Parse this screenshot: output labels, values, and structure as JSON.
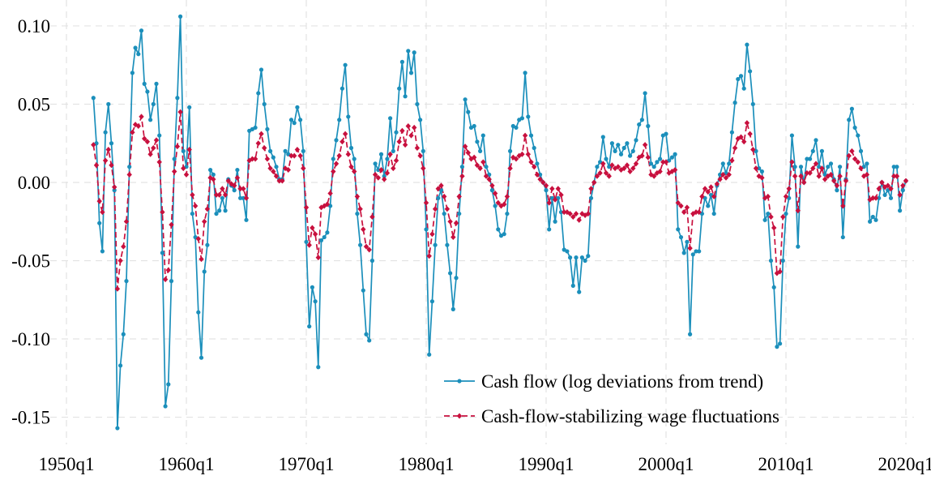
{
  "chart_data": {
    "type": "line",
    "x": [
      "1952q2",
      "1952q3",
      "1952q4",
      "1953q1",
      "1953q2",
      "1953q3",
      "1953q4",
      "1954q1",
      "1954q2",
      "1954q3",
      "1954q4",
      "1955q1",
      "1955q2",
      "1955q3",
      "1955q4",
      "1956q1",
      "1956q2",
      "1956q3",
      "1956q4",
      "1957q1",
      "1957q2",
      "1957q3",
      "1957q4",
      "1958q1",
      "1958q2",
      "1958q3",
      "1958q4",
      "1959q1",
      "1959q2",
      "1959q3",
      "1959q4",
      "1960q1",
      "1960q2",
      "1960q3",
      "1960q4",
      "1961q1",
      "1961q2",
      "1961q3",
      "1961q4",
      "1962q1",
      "1962q2",
      "1962q3",
      "1962q4",
      "1963q1",
      "1963q2",
      "1963q3",
      "1963q4",
      "1964q1",
      "1964q2",
      "1964q3",
      "1964q4",
      "1965q1",
      "1965q2",
      "1965q3",
      "1965q4",
      "1966q1",
      "1966q2",
      "1966q3",
      "1966q4",
      "1967q1",
      "1967q2",
      "1967q3",
      "1967q4",
      "1968q1",
      "1968q2",
      "1968q3",
      "1968q4",
      "1969q1",
      "1969q2",
      "1969q3",
      "1969q4",
      "1970q1",
      "1970q2",
      "1970q3",
      "1970q4",
      "1971q1",
      "1971q2",
      "1971q3",
      "1971q4",
      "1972q1",
      "1972q2",
      "1972q3",
      "1972q4",
      "1973q1",
      "1973q2",
      "1973q3",
      "1973q4",
      "1974q1",
      "1974q2",
      "1974q3",
      "1974q4",
      "1975q1",
      "1975q2",
      "1975q3",
      "1975q4",
      "1976q1",
      "1976q2",
      "1976q3",
      "1976q4",
      "1977q1",
      "1977q2",
      "1977q3",
      "1977q4",
      "1978q1",
      "1978q2",
      "1978q3",
      "1978q4",
      "1979q1",
      "1979q2",
      "1979q3",
      "1979q4",
      "1980q1",
      "1980q2",
      "1980q3",
      "1980q4",
      "1981q1",
      "1981q2",
      "1981q3",
      "1981q4",
      "1982q1",
      "1982q2",
      "1982q3",
      "1982q4",
      "1983q1",
      "1983q2",
      "1983q3",
      "1983q4",
      "1984q1",
      "1984q2",
      "1984q3",
      "1984q4",
      "1985q1",
      "1985q2",
      "1985q3",
      "1985q4",
      "1986q1",
      "1986q2",
      "1986q3",
      "1986q4",
      "1987q1",
      "1987q2",
      "1987q3",
      "1987q4",
      "1988q1",
      "1988q2",
      "1988q3",
      "1988q4",
      "1989q1",
      "1989q2",
      "1989q3",
      "1989q4",
      "1990q1",
      "1990q2",
      "1990q3",
      "1990q4",
      "1991q1",
      "1991q2",
      "1991q3",
      "1991q4",
      "1992q1",
      "1992q2",
      "1992q3",
      "1992q4",
      "1993q1",
      "1993q2",
      "1993q3",
      "1993q4",
      "1994q1",
      "1994q2",
      "1994q3",
      "1994q4",
      "1995q1",
      "1995q2",
      "1995q3",
      "1995q4",
      "1996q1",
      "1996q2",
      "1996q3",
      "1996q4",
      "1997q1",
      "1997q2",
      "1997q3",
      "1997q4",
      "1998q1",
      "1998q2",
      "1998q3",
      "1998q4",
      "1999q1",
      "1999q2",
      "1999q3",
      "1999q4",
      "2000q1",
      "2000q2",
      "2000q3",
      "2000q4",
      "2001q1",
      "2001q2",
      "2001q3",
      "2001q4",
      "2002q1",
      "2002q2",
      "2002q3",
      "2002q4",
      "2003q1",
      "2003q2",
      "2003q3",
      "2003q4",
      "2004q1",
      "2004q2",
      "2004q3",
      "2004q4",
      "2005q1",
      "2005q2",
      "2005q3",
      "2005q4",
      "2006q1",
      "2006q2",
      "2006q3",
      "2006q4",
      "2007q1",
      "2007q2",
      "2007q3",
      "2007q4",
      "2008q1",
      "2008q2",
      "2008q3",
      "2008q4",
      "2009q1",
      "2009q2",
      "2009q3",
      "2009q4",
      "2010q1",
      "2010q2",
      "2010q3",
      "2010q4",
      "2011q1",
      "2011q2",
      "2011q3",
      "2011q4",
      "2012q1",
      "2012q2",
      "2012q3",
      "2012q4",
      "2013q1",
      "2013q2",
      "2013q3",
      "2013q4",
      "2014q1",
      "2014q2",
      "2014q3",
      "2014q4",
      "2015q1",
      "2015q2",
      "2015q3",
      "2015q4",
      "2016q1",
      "2016q2",
      "2016q3",
      "2016q4",
      "2017q1",
      "2017q2",
      "2017q3",
      "2017q4",
      "2018q1",
      "2018q2",
      "2018q3",
      "2018q4",
      "2019q1",
      "2019q2",
      "2019q3",
      "2019q4",
      "2020q1"
    ],
    "series": [
      {
        "name": "Cash flow (log deviations from trend)",
        "color": "#1b8fbb",
        "marker": "circle",
        "dash": false,
        "values": [
          0.054,
          0.025,
          -0.026,
          -0.044,
          0.032,
          0.05,
          0.025,
          -0.005,
          -0.157,
          -0.117,
          -0.097,
          -0.063,
          0.01,
          0.07,
          0.086,
          0.082,
          0.097,
          0.063,
          0.058,
          0.04,
          0.05,
          0.063,
          0.03,
          -0.045,
          -0.143,
          -0.129,
          -0.063,
          0.015,
          0.054,
          0.106,
          0.02,
          0.01,
          0.048,
          -0.02,
          -0.035,
          -0.083,
          -0.112,
          -0.057,
          -0.04,
          0.008,
          0.005,
          -0.02,
          -0.018,
          -0.01,
          -0.018,
          0.002,
          -0.002,
          -0.005,
          0.008,
          -0.01,
          -0.01,
          -0.024,
          0.033,
          0.034,
          0.035,
          0.057,
          0.072,
          0.05,
          0.034,
          0.02,
          0.016,
          0.01,
          0.002,
          0.002,
          0.02,
          0.018,
          0.04,
          0.038,
          0.048,
          0.04,
          0.02,
          -0.038,
          -0.092,
          -0.067,
          -0.076,
          -0.118,
          -0.037,
          -0.035,
          -0.032,
          -0.015,
          0.015,
          0.027,
          0.04,
          0.06,
          0.075,
          0.042,
          0.022,
          0.015,
          -0.02,
          -0.04,
          -0.069,
          -0.097,
          -0.101,
          -0.05,
          0.012,
          0.008,
          0.018,
          0.004,
          0.015,
          0.041,
          0.02,
          0.032,
          0.06,
          0.077,
          0.055,
          0.084,
          0.07,
          0.083,
          0.05,
          0.04,
          0.02,
          -0.03,
          -0.11,
          -0.076,
          -0.04,
          -0.01,
          -0.005,
          -0.02,
          -0.04,
          -0.058,
          -0.081,
          -0.061,
          -0.02,
          0.01,
          0.053,
          0.045,
          0.035,
          0.036,
          0.026,
          0.02,
          0.03,
          0.01,
          0.005,
          -0.005,
          -0.015,
          -0.03,
          -0.034,
          -0.033,
          -0.02,
          0.02,
          0.036,
          0.035,
          0.04,
          0.041,
          0.07,
          0.042,
          0.03,
          0.022,
          0.012,
          0.005,
          0.0,
          -0.005,
          -0.03,
          -0.01,
          -0.025,
          -0.01,
          -0.019,
          -0.043,
          -0.044,
          -0.048,
          -0.066,
          -0.048,
          -0.07,
          -0.048,
          -0.05,
          -0.047,
          -0.01,
          0.0,
          0.01,
          0.013,
          0.029,
          0.015,
          0.01,
          0.025,
          0.02,
          0.024,
          0.018,
          0.022,
          0.025,
          0.017,
          0.02,
          0.027,
          0.037,
          0.04,
          0.057,
          0.036,
          0.012,
          0.01,
          0.013,
          0.015,
          0.03,
          0.031,
          0.014,
          0.016,
          0.018,
          -0.03,
          -0.035,
          -0.045,
          -0.038,
          -0.097,
          -0.046,
          -0.044,
          -0.044,
          -0.02,
          -0.01,
          -0.015,
          -0.008,
          -0.02,
          -0.002,
          0.005,
          0.012,
          0.006,
          0.012,
          0.032,
          0.051,
          0.066,
          0.068,
          0.06,
          0.088,
          0.071,
          0.05,
          0.02,
          0.009,
          0.007,
          -0.024,
          -0.02,
          -0.05,
          -0.067,
          -0.105,
          -0.103,
          -0.05,
          -0.02,
          -0.01,
          0.03,
          0.01,
          -0.041,
          0.01,
          0.0,
          0.015,
          0.015,
          0.02,
          0.027,
          0.01,
          0.02,
          0.005,
          0.01,
          0.012,
          0.002,
          -0.005,
          0.01,
          -0.035,
          0.002,
          0.04,
          0.047,
          0.035,
          0.03,
          0.02,
          0.01,
          0.012,
          -0.025,
          -0.022,
          -0.024,
          -0.01,
          0.0,
          -0.008,
          -0.005,
          -0.01,
          0.01,
          0.01,
          -0.018,
          -0.005,
          0.001
        ]
      },
      {
        "name": "Cash-flow-stabilizing wage fluctuations",
        "color": "#c8103e",
        "marker": "diamond",
        "dash": true,
        "values": [
          0.024,
          0.011,
          -0.012,
          -0.019,
          0.014,
          0.021,
          0.011,
          -0.003,
          -0.068,
          -0.05,
          -0.041,
          -0.025,
          0.005,
          0.032,
          0.037,
          0.036,
          0.042,
          0.028,
          0.026,
          0.018,
          0.022,
          0.027,
          0.013,
          -0.019,
          -0.062,
          -0.056,
          -0.027,
          0.007,
          0.023,
          0.045,
          0.009,
          0.005,
          0.021,
          -0.008,
          -0.015,
          -0.036,
          -0.049,
          -0.025,
          -0.017,
          0.003,
          0.002,
          -0.008,
          -0.008,
          -0.004,
          -0.008,
          0.001,
          -0.001,
          -0.002,
          0.003,
          -0.004,
          -0.004,
          -0.01,
          0.014,
          0.015,
          0.015,
          0.025,
          0.031,
          0.022,
          0.015,
          0.009,
          0.007,
          0.004,
          0.001,
          0.001,
          0.009,
          0.008,
          0.017,
          0.017,
          0.021,
          0.017,
          0.009,
          -0.016,
          -0.04,
          -0.029,
          -0.033,
          -0.048,
          -0.016,
          -0.015,
          -0.014,
          -0.007,
          0.007,
          0.012,
          0.017,
          0.026,
          0.031,
          0.018,
          0.01,
          0.007,
          -0.009,
          -0.017,
          -0.03,
          -0.041,
          -0.043,
          -0.022,
          0.005,
          0.003,
          0.008,
          0.002,
          0.006,
          0.018,
          0.009,
          0.014,
          0.026,
          0.033,
          0.024,
          0.036,
          0.03,
          0.035,
          0.022,
          0.017,
          0.009,
          -0.013,
          -0.047,
          -0.033,
          -0.017,
          -0.004,
          -0.002,
          -0.009,
          -0.017,
          -0.025,
          -0.035,
          -0.026,
          -0.009,
          0.004,
          0.023,
          0.019,
          0.015,
          0.016,
          0.011,
          0.009,
          0.013,
          0.004,
          0.002,
          -0.002,
          -0.007,
          -0.013,
          -0.015,
          -0.014,
          -0.009,
          0.009,
          0.016,
          0.015,
          0.017,
          0.018,
          0.03,
          0.018,
          0.013,
          0.01,
          0.005,
          0.002,
          0.0,
          -0.002,
          -0.013,
          -0.004,
          -0.011,
          -0.004,
          -0.008,
          -0.019,
          -0.019,
          -0.02,
          -0.022,
          -0.02,
          -0.024,
          -0.02,
          -0.021,
          -0.02,
          -0.004,
          0.0,
          0.004,
          0.006,
          0.012,
          0.006,
          0.004,
          0.011,
          0.009,
          0.01,
          0.008,
          0.009,
          0.011,
          0.007,
          0.009,
          0.012,
          0.016,
          0.017,
          0.024,
          0.016,
          0.005,
          0.004,
          0.006,
          0.007,
          0.013,
          0.013,
          0.006,
          0.007,
          0.008,
          -0.013,
          -0.015,
          -0.019,
          -0.016,
          -0.042,
          -0.02,
          -0.019,
          -0.019,
          -0.009,
          -0.004,
          -0.006,
          -0.003,
          -0.009,
          -0.001,
          0.002,
          0.005,
          0.003,
          0.005,
          0.014,
          0.022,
          0.028,
          0.029,
          0.026,
          0.038,
          0.031,
          0.021,
          0.009,
          0.004,
          0.003,
          -0.01,
          -0.009,
          -0.022,
          -0.029,
          -0.058,
          -0.057,
          -0.022,
          -0.009,
          -0.004,
          0.013,
          0.004,
          -0.018,
          0.004,
          0.0,
          0.006,
          0.006,
          0.009,
          0.012,
          0.004,
          0.009,
          0.002,
          0.004,
          0.005,
          0.001,
          -0.002,
          0.004,
          -0.015,
          0.001,
          0.017,
          0.02,
          0.015,
          0.013,
          0.009,
          0.004,
          0.005,
          -0.011,
          -0.01,
          -0.01,
          -0.004,
          0.0,
          -0.003,
          -0.002,
          -0.004,
          0.004,
          0.004,
          -0.008,
          -0.002,
          0.001
        ]
      }
    ],
    "xlim": [
      "1950q1",
      "2020q1"
    ],
    "xticks": [
      "1950q1",
      "1960q1",
      "1970q1",
      "1980q1",
      "1990q1",
      "2000q1",
      "2010q1",
      "2020q1"
    ],
    "ylim": [
      -0.165,
      0.115
    ],
    "yticks": [
      {
        "value": 0.1,
        "label": "0.10"
      },
      {
        "value": 0.05,
        "label": "0.05"
      },
      {
        "value": 0,
        "label": "0.00"
      },
      {
        "value": -0.05,
        "label": "-0.05"
      },
      {
        "value": -0.1,
        "label": "-0.10"
      },
      {
        "value": -0.15,
        "label": "-0.15"
      }
    ],
    "grid": true,
    "legend": "lower right"
  }
}
